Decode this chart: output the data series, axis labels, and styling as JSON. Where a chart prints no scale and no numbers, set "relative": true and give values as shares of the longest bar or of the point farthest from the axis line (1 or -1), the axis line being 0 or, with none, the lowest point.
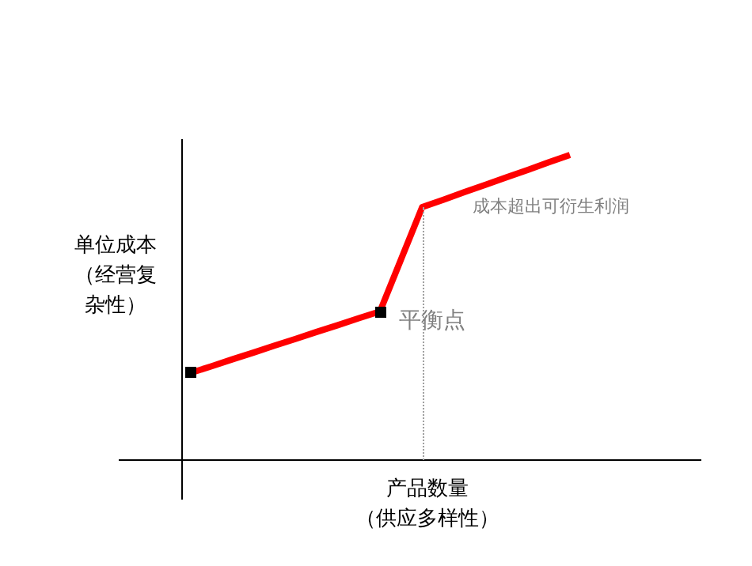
{
  "chart_data": {
    "type": "line",
    "relative": true,
    "xlabel": "产品数量（供应多样性）",
    "ylabel": "单位成本（经营复杂性）",
    "categories": [
      null,
      null,
      null,
      null,
      null,
      null,
      null,
      null,
      null,
      null,
      null,
      null,
      null,
      null,
      null,
      null,
      null,
      null,
      null
    ],
    "series": [
      {
        "color": "#ff0000",
        "values": [
          0.285,
          0.307,
          0.33,
          0.352,
          0.375,
          0.397,
          0.42,
          0.442,
          0.465,
          0.487,
          0.658,
          0.829,
          0.853,
          0.878,
          0.902,
          0.927,
          0.951,
          0.976,
          1
        ]
      }
    ],
    "annotations": [
      "平衡点",
      "成本超出可衍生利润"
    ]
  }
}
